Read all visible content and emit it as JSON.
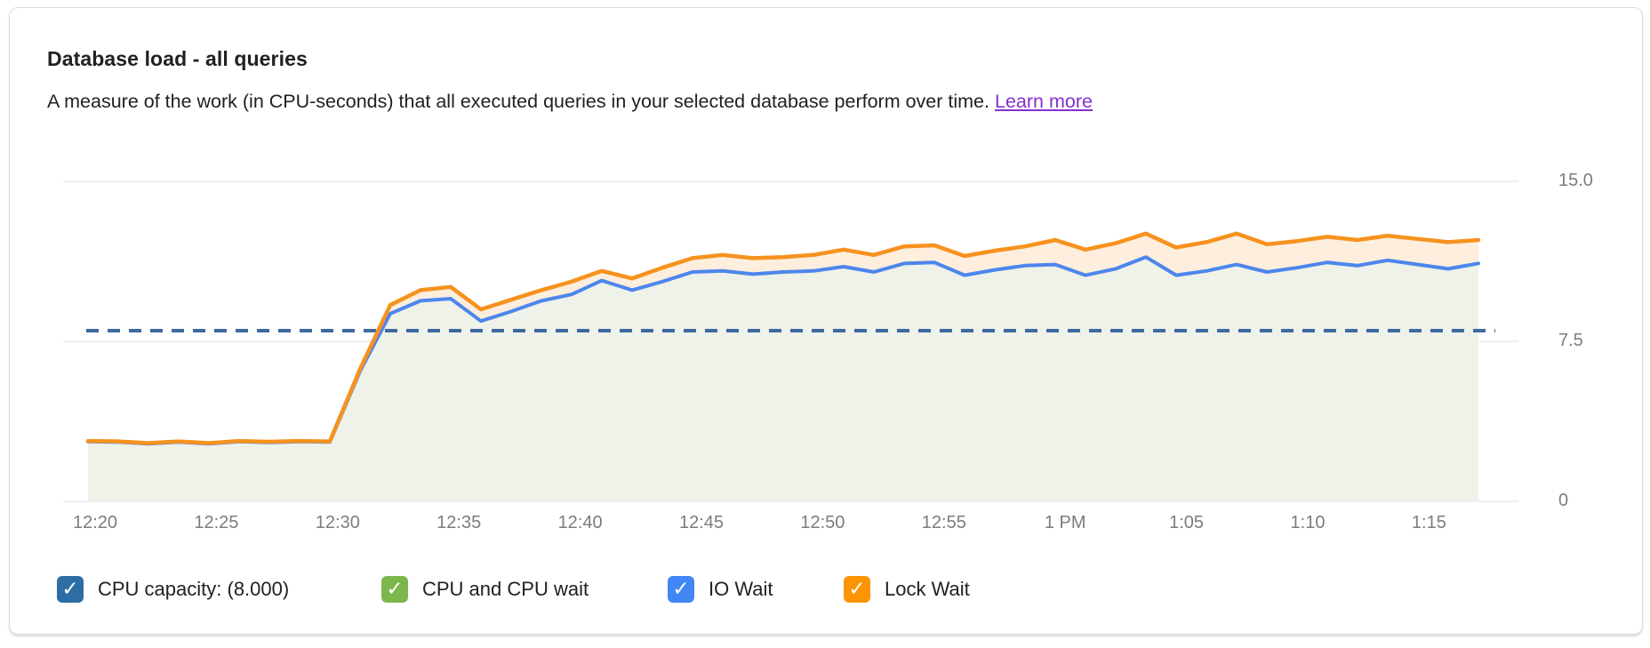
{
  "card": {
    "title": "Database load - all queries",
    "subtitle": "A measure of the work (in CPU-seconds) that all executed queries in your selected database perform over time.",
    "learn_more": "Learn more"
  },
  "colors": {
    "link": "#8430ce",
    "grid": "#eceef1",
    "axis_text": "#797d81",
    "capacity_line": "#3d6aa0",
    "io_wait_line": "#4d86ec",
    "lock_wait_line": "#f6921e",
    "cpu_area_fill": "#eef2e9",
    "lock_area_fill": "#fdeedd"
  },
  "chart_data": {
    "type": "area",
    "stacked": true,
    "title": "Database load - all queries",
    "ylim": [
      0,
      15
    ],
    "y_tick_values": [
      15,
      7.5,
      0
    ],
    "y_tick_labels": [
      "15.0",
      "7.5",
      "0"
    ],
    "x_tick_labels": [
      "12:20",
      "12:25",
      "12:30",
      "12:35",
      "12:40",
      "12:45",
      "12:50",
      "12:55",
      "1 PM",
      "1:05",
      "1:10",
      "1:15"
    ],
    "x_start_min": 0,
    "x_step_min": 1.25,
    "grid": true,
    "legend_position": "bottom",
    "capacity": {
      "label": "CPU capacity",
      "value": 8.0
    },
    "series": [
      {
        "name": "CPU and CPU wait + IO Wait (stack top, blue boundary)",
        "line_color": "#4d86ec",
        "fill_color": "#eef2e9",
        "values": [
          2.8,
          2.78,
          2.7,
          2.78,
          2.7,
          2.8,
          2.76,
          2.8,
          2.78,
          6.1,
          8.8,
          9.4,
          9.5,
          8.45,
          8.9,
          9.4,
          9.7,
          10.35,
          9.9,
          10.3,
          10.75,
          10.8,
          10.65,
          10.75,
          10.8,
          11.0,
          10.75,
          11.15,
          11.2,
          10.6,
          10.85,
          11.05,
          11.1,
          10.6,
          10.9,
          11.45,
          10.6,
          10.8,
          11.1,
          10.75,
          10.95,
          11.2,
          11.05,
          11.3,
          11.1,
          10.9,
          11.15
        ]
      },
      {
        "name": "Lock Wait (stack top, orange boundary)",
        "line_color": "#f6921e",
        "fill_color": "#fdeedd",
        "values": [
          2.83,
          2.81,
          2.73,
          2.81,
          2.73,
          2.83,
          2.79,
          2.83,
          2.81,
          6.2,
          9.2,
          9.9,
          10.05,
          9.0,
          9.45,
          9.9,
          10.3,
          10.8,
          10.45,
          10.95,
          11.4,
          11.55,
          11.4,
          11.45,
          11.55,
          11.8,
          11.55,
          11.95,
          12.0,
          11.5,
          11.75,
          11.95,
          12.25,
          11.8,
          12.1,
          12.55,
          11.9,
          12.15,
          12.55,
          12.05,
          12.2,
          12.4,
          12.25,
          12.45,
          12.3,
          12.15,
          12.25
        ]
      }
    ],
    "legend": [
      {
        "label": "CPU capacity: (8.000)",
        "color": "#2e6da4",
        "checked": true
      },
      {
        "label": "CPU and CPU wait",
        "color": "#7cb74c",
        "checked": true
      },
      {
        "label": "IO Wait",
        "color": "#4285f4",
        "checked": true
      },
      {
        "label": "Lock Wait",
        "color": "#fc9403",
        "checked": true
      }
    ]
  }
}
